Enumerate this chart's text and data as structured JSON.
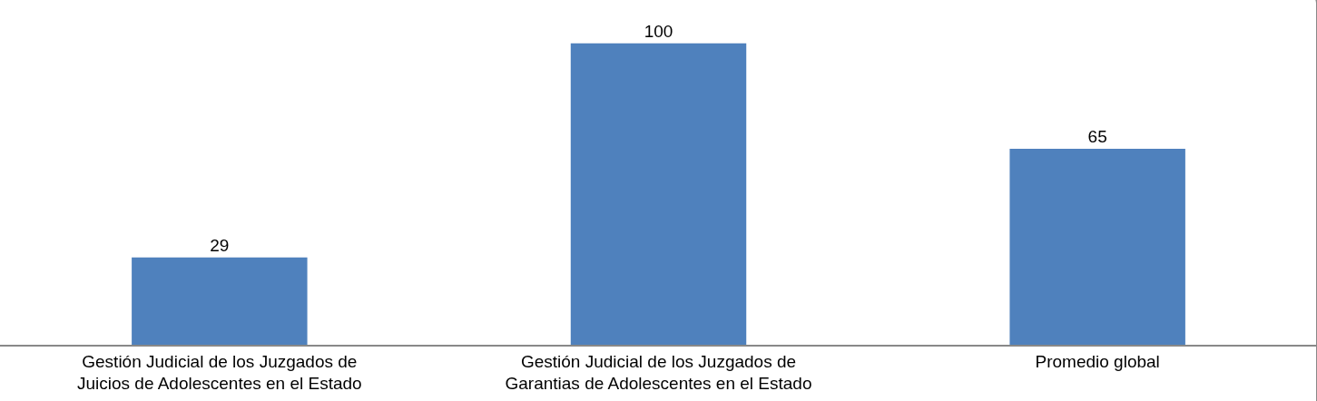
{
  "chart_data": {
    "type": "bar",
    "categories": [
      "Gestión Judicial de los Juzgados de Juicios de Adolescentes en el Estado",
      "Gestión Judicial de los Juzgados de Garantias de Adolescentes en el Estado",
      "Promedio global"
    ],
    "values": [
      29,
      100,
      65
    ],
    "color": "#4f81bd",
    "data_labels": true
  }
}
